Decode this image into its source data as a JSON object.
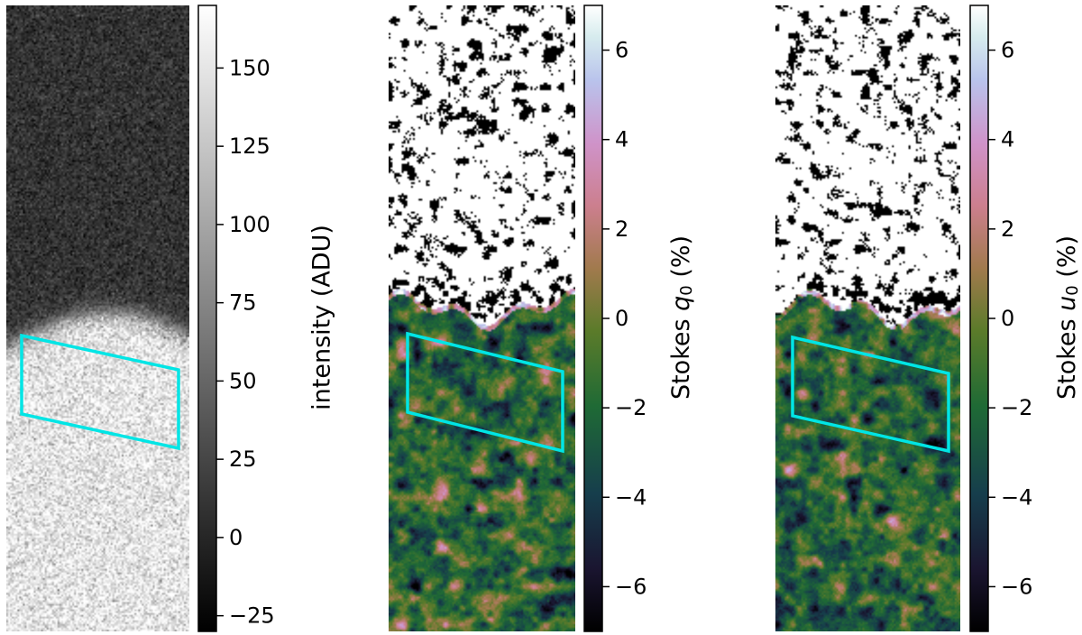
{
  "chart_data": [
    {
      "type": "heatmap",
      "title": "",
      "colormap": "gray",
      "colorbar": {
        "label": "intensity (ADU)",
        "range": [
          -30,
          170
        ],
        "ticks": [
          -25,
          0,
          25,
          50,
          75,
          100,
          125,
          150
        ],
        "tick_labels": [
          "−25",
          "0",
          "25",
          "50",
          "75",
          "100",
          "125",
          "150"
        ]
      },
      "content": {
        "upper_level": 10,
        "lower_level": 150,
        "boundary_fraction": 0.52
      },
      "region_outline": {
        "shape": "parallelogram",
        "color": "#00e5e5"
      }
    },
    {
      "type": "heatmap",
      "title": "",
      "colormap": "cubehelix",
      "colorbar": {
        "label_prefix": "Stokes ",
        "label_symbol": "q",
        "label_subscript": "0",
        "label_suffix": " (%)",
        "range": [
          -7,
          7
        ],
        "ticks": [
          -6,
          -4,
          -2,
          0,
          2,
          4,
          6
        ],
        "tick_labels": [
          "−6",
          "−4",
          "−2",
          "0",
          "2",
          "4",
          "6"
        ]
      },
      "content": {
        "mean": -2,
        "spread": 2,
        "saturated_upper": true
      },
      "region_outline": {
        "shape": "parallelogram",
        "color": "#00e5e5"
      }
    },
    {
      "type": "heatmap",
      "title": "",
      "colormap": "cubehelix",
      "colorbar": {
        "label_prefix": "Stokes ",
        "label_symbol": "u",
        "label_subscript": "0",
        "label_suffix": " (%)",
        "range": [
          -7,
          7
        ],
        "ticks": [
          -6,
          -4,
          -2,
          0,
          2,
          4,
          6
        ],
        "tick_labels": [
          "−6",
          "−4",
          "−2",
          "0",
          "2",
          "4",
          "6"
        ]
      },
      "content": {
        "mean": -2,
        "spread": 2,
        "saturated_upper": true
      },
      "region_outline": {
        "shape": "parallelogram",
        "color": "#00e5e5"
      }
    }
  ]
}
